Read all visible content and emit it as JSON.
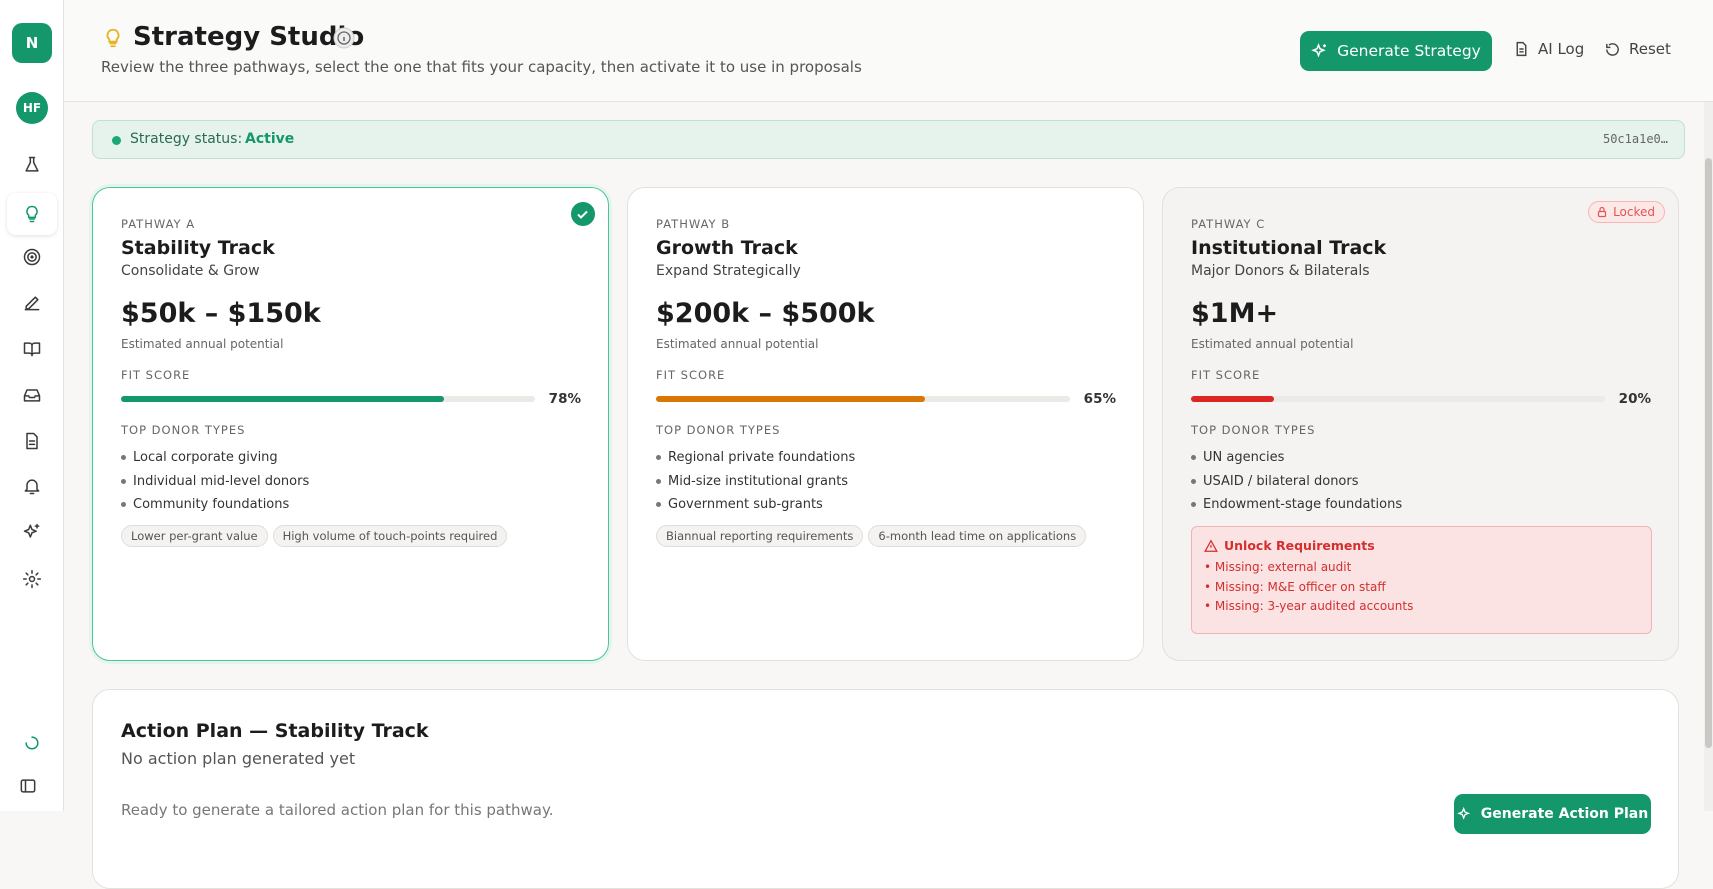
{
  "sidebar": {
    "logo": "N",
    "avatar": "HF"
  },
  "header": {
    "title": "Strategy Studio",
    "subtitle": "Review the three pathways, select the one that fits your capacity, then activate it to use in proposals",
    "buttons": {
      "generate": "Generate Strategy",
      "log": "AI Log",
      "reset": "Reset"
    }
  },
  "status": {
    "label": "Strategy status:",
    "value": "Active",
    "id": "50c1a1e0…"
  },
  "pathways": [
    {
      "label": "PATHWAY A",
      "name": "Stability Track",
      "tagline": "Consolidate & Grow",
      "range": "$50k – $150k",
      "range_caption": "Estimated annual potential",
      "fit_label": "FIT SCORE",
      "fit": {
        "value": 78,
        "label": "78%"
      },
      "donor_label": "TOP DONOR TYPES",
      "donors": [
        "Local corporate giving",
        "Individual mid-level donors",
        "Community foundations"
      ],
      "tags": [
        "Lower per-grant value",
        "High volume of touch-points required"
      ]
    },
    {
      "label": "PATHWAY B",
      "name": "Growth Track",
      "tagline": "Expand Strategically",
      "range": "$200k – $500k",
      "range_caption": "Estimated annual potential",
      "fit_label": "FIT SCORE",
      "fit": {
        "value": 65,
        "label": "65%"
      },
      "donor_label": "TOP DONOR TYPES",
      "donors": [
        "Regional private foundations",
        "Mid-size institutional grants",
        "Government sub-grants"
      ],
      "tags": [
        "Biannual reporting requirements",
        "6-month lead time on applications"
      ]
    },
    {
      "label": "PATHWAY C",
      "name": "Institutional Track",
      "tagline": "Major Donors & Bilaterals",
      "range": "$1M+",
      "range_caption": "Estimated annual potential",
      "fit_label": "FIT SCORE",
      "fit": {
        "value": 20,
        "label": "20%"
      },
      "donor_label": "TOP DONOR TYPES",
      "donors": [
        "UN agencies",
        "USAID / bilateral donors",
        "Endowment-stage foundations"
      ],
      "badge": "Locked",
      "unlock": {
        "title": "Unlock Requirements",
        "items": [
          "• Missing: external audit",
          "• Missing: M&E officer on staff",
          "• Missing: 3-year audited accounts"
        ]
      }
    }
  ],
  "action_plan": {
    "title": "Action Plan — Stability Track",
    "subtitle": "No action plan generated yet",
    "text": "Ready to generate a tailored action plan for this pathway.",
    "button": "Generate Action Plan"
  }
}
